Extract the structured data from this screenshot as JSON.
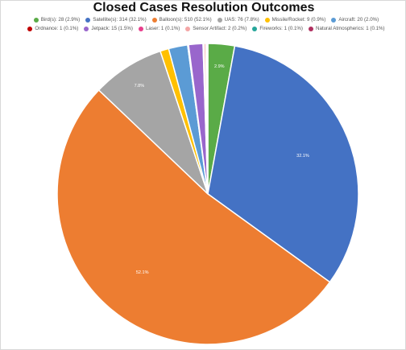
{
  "chart_data": {
    "type": "pie",
    "title": "Closed Cases Resolution Outcomes",
    "legend_position": "top",
    "slices": [
      {
        "name": "Bird(s)",
        "value": 28,
        "percent": 2.9,
        "legend": "Bird(s): 28 (2.9%)",
        "label": "2.9%",
        "color": "#5aab47"
      },
      {
        "name": "Satellite(s)",
        "value": 314,
        "percent": 32.1,
        "legend": "Satellite(s): 314 (32.1%)",
        "label": "32.1%",
        "color": "#4472c4"
      },
      {
        "name": "Balloon(s)",
        "value": 510,
        "percent": 52.1,
        "legend": "Balloon(s): 510 (52.1%)",
        "label": "52.1%",
        "color": "#ed7d31"
      },
      {
        "name": "UAS",
        "value": 76,
        "percent": 7.8,
        "legend": "UAS: 76 (7.8%)",
        "label": "7.8%",
        "color": "#a5a5a5"
      },
      {
        "name": "Missile/Rocket",
        "value": 9,
        "percent": 0.9,
        "legend": "Missile/Rocket: 9 (0.9%)",
        "label": "",
        "color": "#ffc000"
      },
      {
        "name": "Aircraft",
        "value": 20,
        "percent": 2.0,
        "legend": "Aircraft: 20 (2.0%)",
        "label": "",
        "color": "#5b9bd5"
      },
      {
        "name": "Ordnance",
        "value": 1,
        "percent": 0.1,
        "legend": "Ordnance: 1 (0.1%)",
        "label": "",
        "color": "#c00000"
      },
      {
        "name": "Jetpack",
        "value": 15,
        "percent": 1.5,
        "legend": "Jetpack: 15 (1.5%)",
        "label": "",
        "color": "#9966cc"
      },
      {
        "name": "Laser",
        "value": 1,
        "percent": 0.1,
        "legend": "Laser: 1 (0.1%)",
        "label": "",
        "color": "#e83e8c"
      },
      {
        "name": "Sensor Artifact",
        "value": 2,
        "percent": 0.2,
        "legend": "Sensor Artifact: 2 (0.2%)",
        "label": "",
        "color": "#f4a6a6"
      },
      {
        "name": "Fireworks",
        "value": 1,
        "percent": 0.1,
        "legend": "Fireworks: 1 (0.1%)",
        "label": "",
        "color": "#26a69a"
      },
      {
        "name": "Natural Atmospherics",
        "value": 1,
        "percent": 0.1,
        "legend": "Natural Atmospherics: 1 (0.1%)",
        "label": "",
        "color": "#b03060"
      }
    ]
  }
}
